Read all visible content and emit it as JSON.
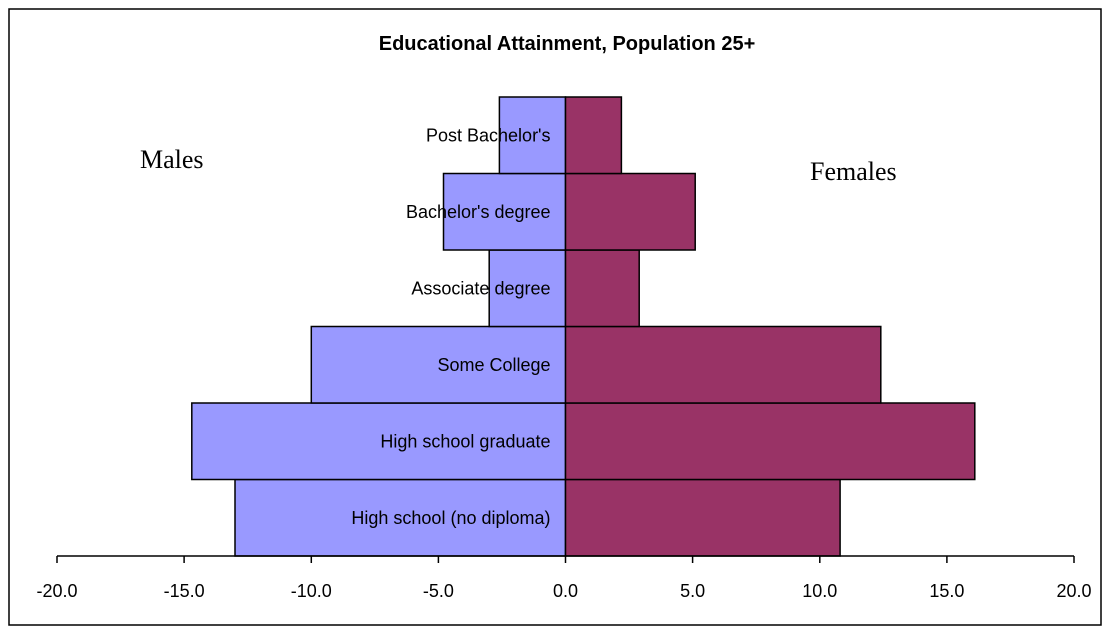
{
  "chart_data": {
    "type": "bar",
    "orientation": "horizontal",
    "title": "Educational Attainment, Population 25+",
    "categories": [
      "High school (no diploma)",
      "High school graduate",
      "Some College",
      "Associate degree",
      "Bachelor's degree",
      "Post Bachelor's"
    ],
    "series": [
      {
        "name": "Males",
        "values": [
          -13.0,
          -14.7,
          -10.0,
          -3.0,
          -4.8,
          -2.6
        ],
        "color": "#9999ff"
      },
      {
        "name": "Females",
        "values": [
          10.8,
          16.1,
          12.4,
          2.9,
          5.1,
          2.2
        ],
        "color": "#993366"
      }
    ],
    "xlim": [
      -20.0,
      20.0
    ],
    "xticks": [
      "-20.0",
      "-15.0",
      "-10.0",
      "-5.0",
      "0.0",
      "5.0",
      "10.0",
      "15.0",
      "20.0"
    ],
    "grid": false,
    "annotations": [
      "Males",
      "Females"
    ]
  }
}
